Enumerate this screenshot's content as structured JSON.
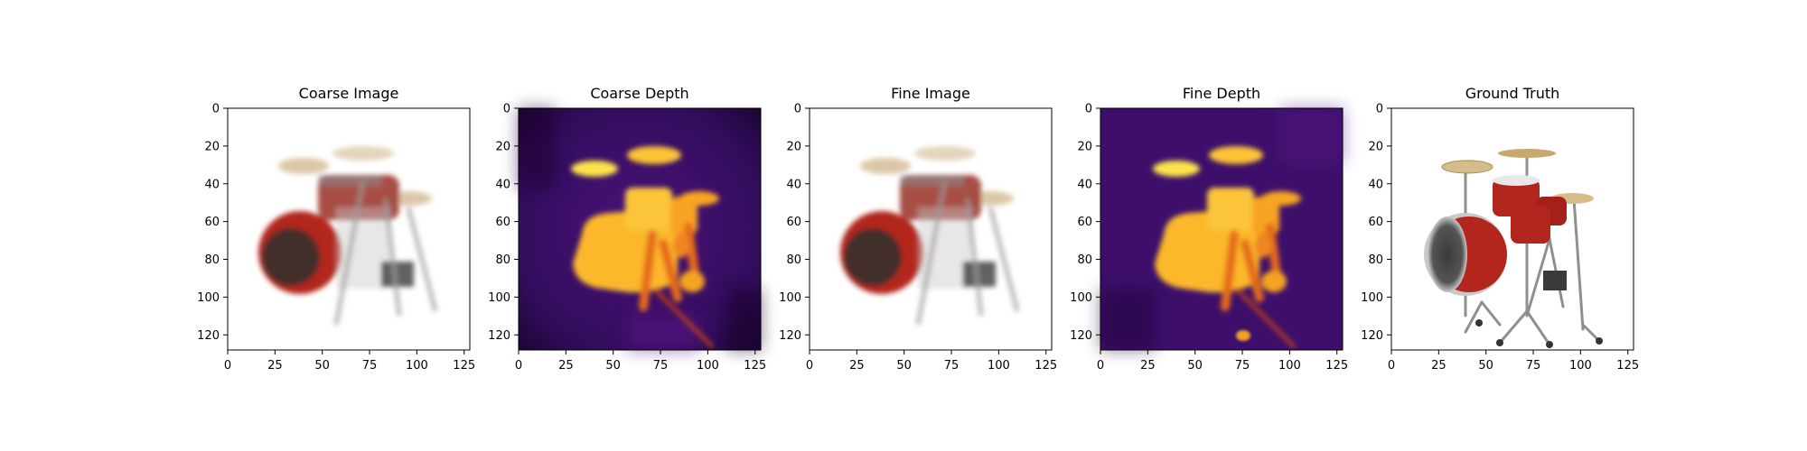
{
  "chart_data": [
    {
      "type": "image",
      "title": "Coarse Image",
      "content": "rgb-render",
      "variant": "coarse",
      "xlim": [
        0,
        128
      ],
      "ylim": [
        128,
        0
      ],
      "xticks": [
        0,
        25,
        50,
        75,
        100,
        125
      ],
      "yticks": [
        0,
        20,
        40,
        60,
        80,
        100,
        120
      ]
    },
    {
      "type": "heatmap",
      "title": "Coarse Depth",
      "content": "depth-map",
      "colormap": "inferno",
      "variant": "coarse",
      "xlim": [
        0,
        128
      ],
      "ylim": [
        128,
        0
      ],
      "xticks": [
        0,
        25,
        50,
        75,
        100,
        125
      ],
      "yticks": [
        0,
        20,
        40,
        60,
        80,
        100,
        120
      ]
    },
    {
      "type": "image",
      "title": "Fine Image",
      "content": "rgb-render",
      "variant": "fine",
      "xlim": [
        0,
        128
      ],
      "ylim": [
        128,
        0
      ],
      "xticks": [
        0,
        25,
        50,
        75,
        100,
        125
      ],
      "yticks": [
        0,
        20,
        40,
        60,
        80,
        100,
        120
      ]
    },
    {
      "type": "heatmap",
      "title": "Fine Depth",
      "content": "depth-map",
      "colormap": "inferno",
      "variant": "fine",
      "xlim": [
        0,
        128
      ],
      "ylim": [
        128,
        0
      ],
      "xticks": [
        0,
        25,
        50,
        75,
        100,
        125
      ],
      "yticks": [
        0,
        20,
        40,
        60,
        80,
        100,
        120
      ]
    },
    {
      "type": "image",
      "title": "Ground Truth",
      "content": "rgb-photo",
      "variant": "ground-truth",
      "xlim": [
        0,
        128
      ],
      "ylim": [
        128,
        0
      ],
      "xticks": [
        0,
        25,
        50,
        75,
        100,
        125
      ],
      "yticks": [
        0,
        20,
        40,
        60,
        80,
        100,
        120
      ]
    }
  ],
  "colors": {
    "drum_red": "#b3261e",
    "cymbal": "#d9c3a0",
    "hardware": "#9a9a9a",
    "depth_background": "#3d0f6b",
    "depth_near": "#fcb82c"
  }
}
